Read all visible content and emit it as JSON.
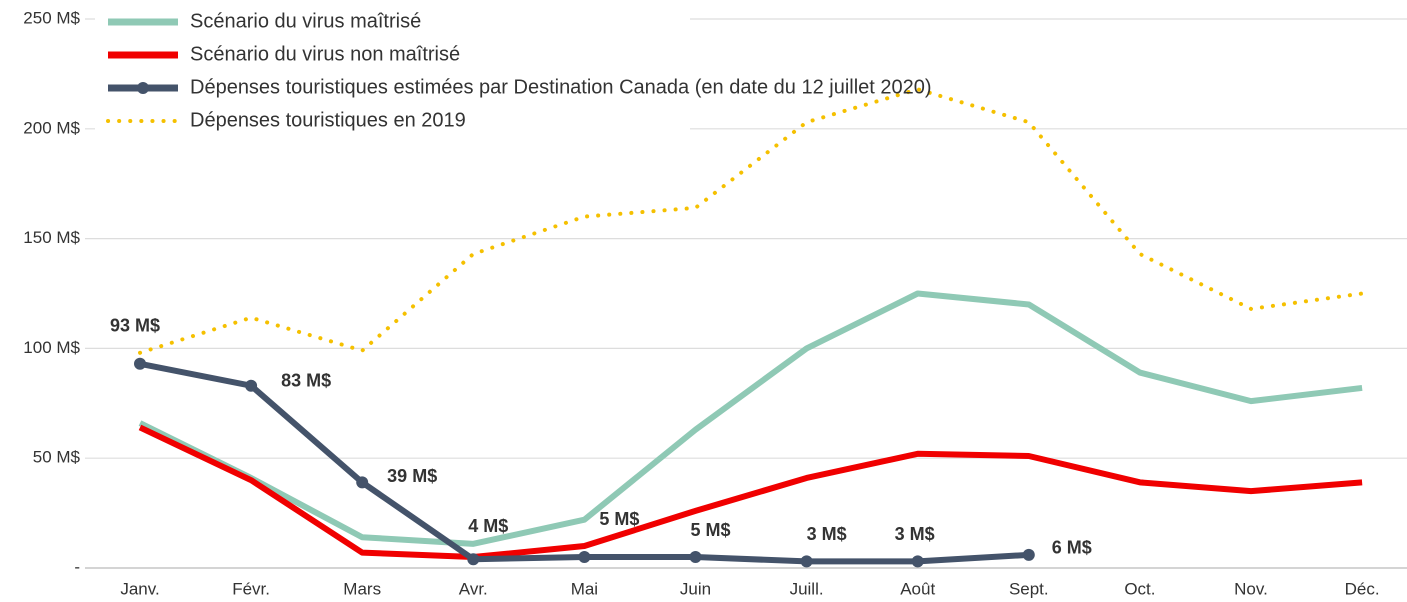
{
  "chart_data": {
    "type": "line",
    "categories": [
      "Janv.",
      "Févr.",
      "Mars",
      "Avr.",
      "Mai",
      "Juin",
      "Juill.",
      "Août",
      "Sept.",
      "Oct.",
      "Nov.",
      "Déc."
    ],
    "series": [
      {
        "name": "Scénario du virus maîtrisé",
        "color": "#8fc9b5",
        "style": "solid",
        "values": [
          66,
          41,
          14,
          11,
          22,
          63,
          100,
          125,
          120,
          89,
          76,
          82
        ]
      },
      {
        "name": "Scénario du virus non maîtrisé",
        "color": "#f00000",
        "style": "solid",
        "values": [
          64,
          40,
          7,
          5,
          10,
          26,
          41,
          52,
          51,
          39,
          35,
          39
        ]
      },
      {
        "name": "Dépenses touristiques estimées par Destination Canada (en date du 12 juillet 2020)",
        "color": "#44536a",
        "style": "markers",
        "values": [
          93,
          83,
          39,
          4,
          5,
          5,
          3,
          3,
          6,
          null,
          null,
          null
        ],
        "value_labels": [
          "93 M$",
          "83 M$",
          "39 M$",
          "4 M$",
          "5 M$",
          "5 M$",
          "3 M$",
          "3 M$",
          "6 M$",
          null,
          null,
          null
        ]
      },
      {
        "name": "Dépenses touristiques en 2019",
        "color": "#f5c000",
        "style": "dotted",
        "values": [
          98,
          114,
          99,
          143,
          160,
          164,
          203,
          218,
          203,
          143,
          118,
          125
        ]
      }
    ],
    "ylim": [
      0,
      250
    ],
    "yticks": [
      {
        "value": 0,
        "label": "-"
      },
      {
        "value": 50,
        "label": "50 M$"
      },
      {
        "value": 100,
        "label": "100 M$"
      },
      {
        "value": 150,
        "label": "150 M$"
      },
      {
        "value": 200,
        "label": "200 M$"
      },
      {
        "value": 250,
        "label": "250 M$"
      }
    ],
    "grid": true,
    "legend": "top-left"
  }
}
